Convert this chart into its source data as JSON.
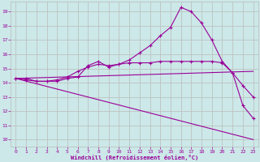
{
  "bg_color": "#cce8e8",
  "line_color": "#990099",
  "grid_color": "#bbbbbb",
  "xlabel": "Windchill (Refroidissement éolien,°C)",
  "xlim": [
    -0.5,
    23.5
  ],
  "ylim": [
    9.5,
    19.7
  ],
  "yticks": [
    10,
    11,
    12,
    13,
    14,
    15,
    16,
    17,
    18,
    19
  ],
  "xticks": [
    0,
    1,
    2,
    3,
    4,
    5,
    6,
    7,
    8,
    9,
    10,
    11,
    12,
    13,
    14,
    15,
    16,
    17,
    18,
    19,
    20,
    21,
    22,
    23
  ],
  "line1_x": [
    0,
    1,
    2,
    3,
    4,
    5,
    6,
    7,
    8,
    9,
    10,
    11,
    12,
    13,
    14,
    15,
    16,
    17,
    18,
    19,
    20,
    21,
    22,
    23
  ],
  "line1_y": [
    14.3,
    14.3,
    14.1,
    14.1,
    14.1,
    14.3,
    14.4,
    15.2,
    15.5,
    15.1,
    15.3,
    15.6,
    16.1,
    16.6,
    17.3,
    17.9,
    19.3,
    19.0,
    18.2,
    17.0,
    15.5,
    14.7,
    12.4,
    11.5
  ],
  "line2_x": [
    0,
    1,
    2,
    3,
    4,
    5,
    6,
    7,
    8,
    9,
    10,
    11,
    12,
    13,
    14,
    15,
    16,
    17,
    18,
    19,
    20,
    21,
    22,
    23
  ],
  "line2_y": [
    14.3,
    14.2,
    14.1,
    14.1,
    14.2,
    14.4,
    14.8,
    15.1,
    15.3,
    15.2,
    15.3,
    15.4,
    15.4,
    15.4,
    15.5,
    15.5,
    15.5,
    15.5,
    15.5,
    15.5,
    15.4,
    14.7,
    13.8,
    13.0
  ],
  "line3_x": [
    0,
    23
  ],
  "line3_y": [
    14.3,
    14.8
  ],
  "line4_x": [
    0,
    23
  ],
  "line4_y": [
    14.3,
    10.0
  ]
}
